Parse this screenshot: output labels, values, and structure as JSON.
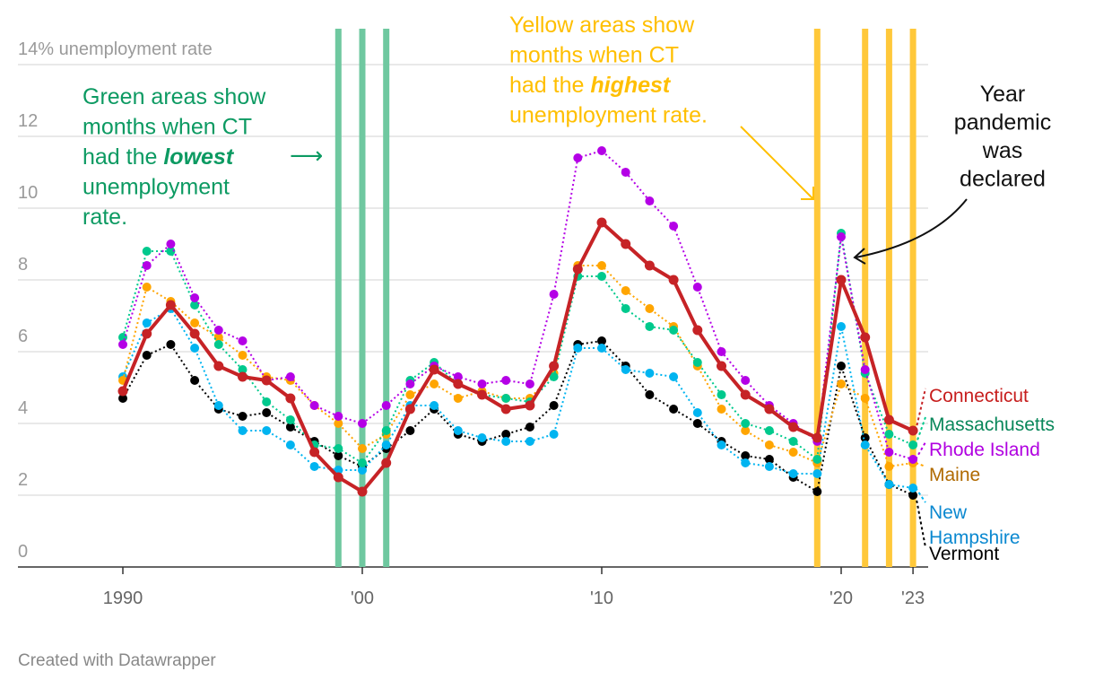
{
  "chart_data": {
    "type": "line",
    "ylabel": "14% unemployment rate",
    "ylim": [
      0,
      14
    ],
    "yticks": [
      "0",
      "2",
      "4",
      "6",
      "8",
      "10",
      "12",
      "14% unemployment rate"
    ],
    "ytick_values": [
      0,
      2,
      4,
      6,
      8,
      10,
      12,
      14
    ],
    "xlim": [
      1990,
      2023
    ],
    "xticks": [
      {
        "value": 1990,
        "label": "1990"
      },
      {
        "value": 2000,
        "label": "'00"
      },
      {
        "value": 2010,
        "label": "'10"
      },
      {
        "value": 2020,
        "label": "'20"
      },
      {
        "value": 2023,
        "label": "'23"
      }
    ],
    "grid": true,
    "x": [
      1990,
      1991,
      1992,
      1993,
      1994,
      1995,
      1996,
      1997,
      1998,
      1999,
      2000,
      2001,
      2002,
      2003,
      2004,
      2005,
      2006,
      2007,
      2008,
      2009,
      2010,
      2011,
      2012,
      2013,
      2014,
      2015,
      2016,
      2017,
      2018,
      2019,
      2020,
      2021,
      2022,
      2023
    ],
    "series": [
      {
        "name": "Vermont",
        "color": "#000000",
        "label_color": "#000000",
        "values": [
          4.7,
          5.9,
          6.2,
          5.2,
          4.4,
          4.2,
          4.3,
          3.9,
          3.5,
          3.1,
          2.8,
          3.3,
          3.8,
          4.4,
          3.7,
          3.5,
          3.7,
          3.9,
          4.5,
          6.2,
          6.3,
          5.6,
          4.8,
          4.4,
          4.0,
          3.5,
          3.1,
          3.0,
          2.5,
          2.1,
          5.6,
          3.6,
          2.3,
          2.0
        ]
      },
      {
        "name": "New Hampshire",
        "color": "#00b4f0",
        "label_color": "#0a88d0",
        "values": [
          5.3,
          6.8,
          7.2,
          6.1,
          4.5,
          3.8,
          3.8,
          3.4,
          2.8,
          2.7,
          2.7,
          3.4,
          4.5,
          4.5,
          3.8,
          3.6,
          3.5,
          3.5,
          3.7,
          6.1,
          6.1,
          5.5,
          5.4,
          5.3,
          4.3,
          3.4,
          2.9,
          2.8,
          2.6,
          2.6,
          6.7,
          3.4,
          2.3,
          2.2
        ]
      },
      {
        "name": "Maine",
        "color": "#ffa500",
        "label_color": "#b06a00",
        "values": [
          5.2,
          7.8,
          7.4,
          6.8,
          6.4,
          5.9,
          5.3,
          5.2,
          4.5,
          4.0,
          3.3,
          3.7,
          4.8,
          5.1,
          4.7,
          4.9,
          4.7,
          4.7,
          5.4,
          8.4,
          8.4,
          7.7,
          7.2,
          6.7,
          5.6,
          4.4,
          3.8,
          3.4,
          3.2,
          2.9,
          5.1,
          4.7,
          2.8,
          2.9
        ]
      },
      {
        "name": "Massachusetts",
        "color": "#00c98d",
        "label_color": "#09875a",
        "values": [
          6.4,
          8.8,
          8.8,
          7.3,
          6.2,
          5.5,
          4.6,
          4.1,
          3.4,
          3.3,
          2.9,
          3.8,
          5.2,
          5.7,
          5.1,
          4.8,
          4.7,
          4.6,
          5.3,
          8.1,
          8.1,
          7.2,
          6.7,
          6.6,
          5.7,
          4.8,
          4.0,
          3.8,
          3.5,
          3.0,
          9.3,
          5.4,
          3.7,
          3.4
        ]
      },
      {
        "name": "Rhode Island",
        "color": "#b400e6",
        "label_color": "#b000e0",
        "values": [
          6.2,
          8.4,
          9.0,
          7.5,
          6.6,
          6.3,
          5.2,
          5.3,
          4.5,
          4.2,
          4.0,
          4.5,
          5.1,
          5.6,
          5.3,
          5.1,
          5.2,
          5.1,
          7.6,
          11.4,
          11.6,
          11.0,
          10.2,
          9.5,
          7.8,
          6.0,
          5.2,
          4.5,
          4.0,
          3.5,
          9.2,
          5.5,
          3.2,
          3.0
        ]
      },
      {
        "name": "Connecticut",
        "color": "#c62326",
        "label_color": "#c71e1d",
        "values": [
          4.9,
          6.5,
          7.3,
          6.5,
          5.6,
          5.3,
          5.2,
          4.7,
          3.2,
          2.5,
          2.1,
          2.9,
          4.4,
          5.5,
          5.1,
          4.8,
          4.4,
          4.5,
          5.6,
          8.3,
          9.6,
          9.0,
          8.4,
          8.0,
          6.6,
          5.6,
          4.8,
          4.4,
          3.9,
          3.6,
          8.0,
          6.4,
          4.1,
          3.8
        ]
      }
    ],
    "highlight_lowest_years": [
      1999,
      2000,
      2001
    ],
    "highlight_highest_years": [
      2019,
      2021,
      2022,
      2023
    ],
    "highlight_lowest_color": "#6fc8a0",
    "highlight_highest_color": "#ffc83a",
    "annotations": {
      "lowest": {
        "color": "#0c9a62",
        "lines": [
          {
            "pre": "Green areas show"
          },
          {
            "pre": "months when CT"
          },
          {
            "pre": "had the ",
            "em": "lowest"
          },
          {
            "pre": "unemployment"
          },
          {
            "pre": "rate."
          }
        ],
        "arrow": "⟶"
      },
      "highest": {
        "color": "#ffbf00",
        "lines": [
          {
            "pre": "Yellow areas show"
          },
          {
            "pre": "months when CT"
          },
          {
            "pre": "had the ",
            "em": "highest"
          },
          {
            "pre": "unemployment rate."
          }
        ]
      },
      "pandemic": {
        "color": "#111111",
        "lines": [
          {
            "pre": "Year"
          },
          {
            "pre": "pandemic"
          },
          {
            "pre": "was"
          },
          {
            "pre": "declared"
          }
        ]
      }
    }
  },
  "footer": "Created with Datawrapper"
}
